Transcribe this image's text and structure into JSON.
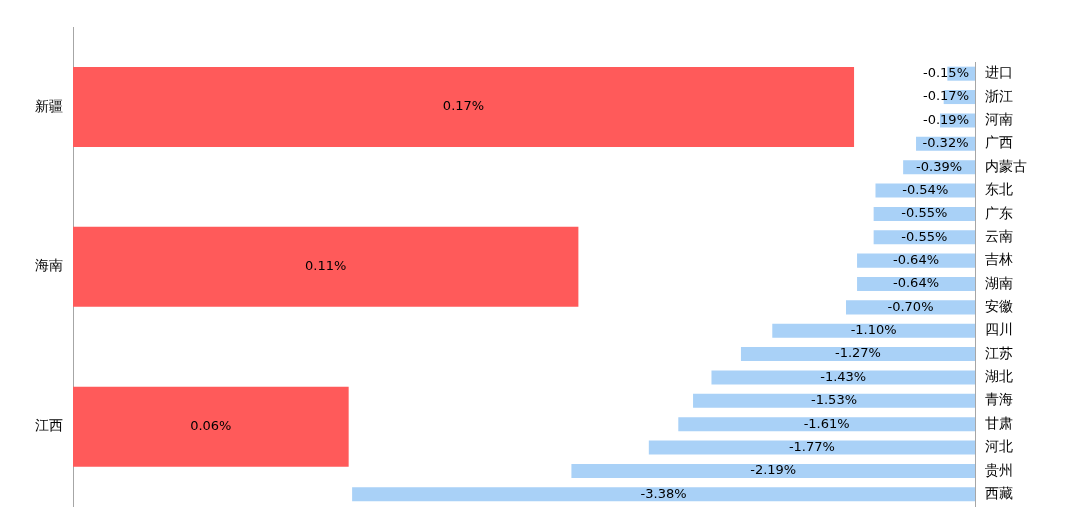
{
  "chart_data": [
    {
      "type": "bar",
      "orientation": "horizontal",
      "categories": [
        "新疆",
        "海南",
        "江西"
      ],
      "values": [
        0.17,
        0.11,
        0.06
      ],
      "color": "#ff5a5a",
      "tick_labels": "y",
      "data_labels": true,
      "value_labels": [
        "0.17%",
        "0.11%",
        "0.06%"
      ]
    },
    {
      "type": "bar",
      "orientation": "horizontal",
      "categories": [
        "进口",
        "浙江",
        "河南",
        "广西",
        "内蒙古",
        "东北",
        "广东",
        "云南",
        "吉林",
        "湖南",
        "安徽",
        "四川",
        "江苏",
        "湖北",
        "青海",
        "甘肃",
        "河北",
        "贵州",
        "西藏"
      ],
      "values": [
        -0.15,
        -0.17,
        -0.19,
        -0.32,
        -0.39,
        -0.54,
        -0.55,
        -0.55,
        -0.64,
        -0.64,
        -0.7,
        -1.1,
        -1.27,
        -1.43,
        -1.53,
        -1.61,
        -1.77,
        -2.19,
        -3.38
      ],
      "color": "#a9d1f7",
      "tick_labels": "y",
      "data_labels": true,
      "value_labels": [
        "-0.15%",
        "-0.17%",
        "-0.19%",
        "-0.32%",
        "-0.39%",
        "-0.54%",
        "-0.55%",
        "-0.55%",
        "-0.64%",
        "-0.64%",
        "-0.70%",
        "-1.10%",
        "-1.27%",
        "-1.43%",
        "-1.53%",
        "-1.61%",
        "-1.77%",
        "-2.19%",
        "-3.38%"
      ]
    }
  ]
}
